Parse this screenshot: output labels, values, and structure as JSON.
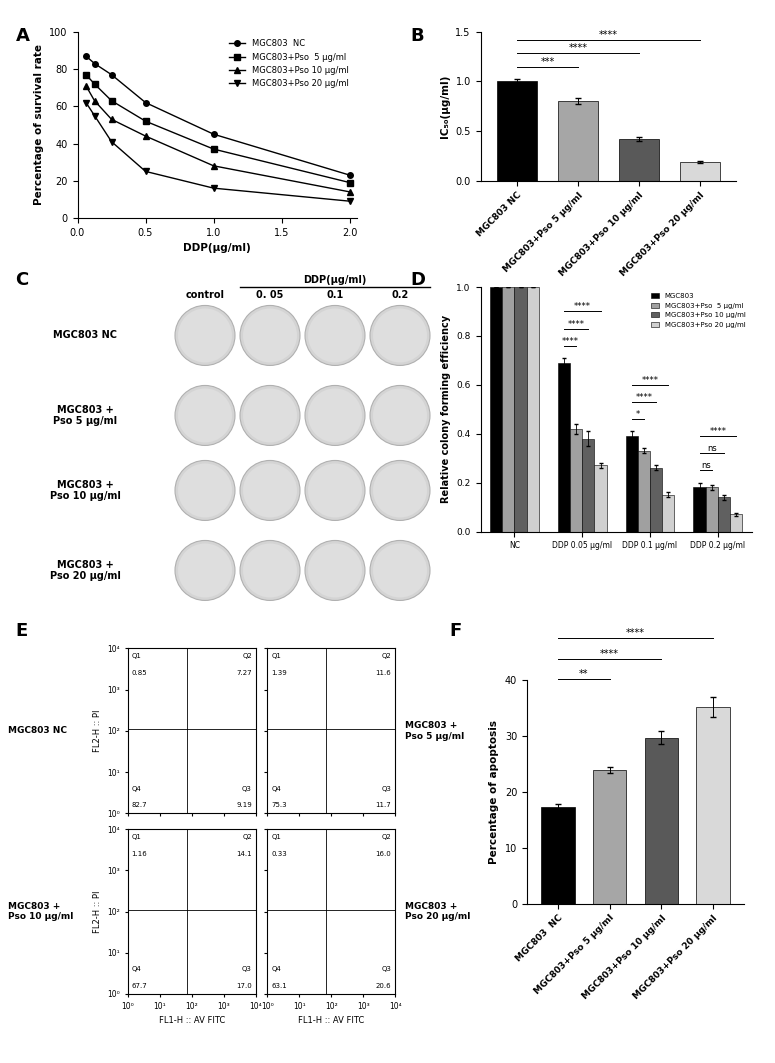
{
  "chart_data": [
    {
      "panel": "A",
      "type": "line",
      "x": [
        0.0625,
        0.125,
        0.25,
        0.5,
        1,
        2
      ],
      "xlabel": "DDP(μg/ml)",
      "ylabel": "Percentage of survival rate",
      "xlim": [
        0,
        2.05
      ],
      "xticks": [
        {
          "value": 0,
          "label": "0.0"
        },
        {
          "value": 0.5,
          "label": "0.5"
        },
        {
          "value": 1,
          "label": "1.0"
        },
        {
          "value": 1.5,
          "label": "1.5"
        },
        {
          "value": 2,
          "label": "2.0"
        }
      ],
      "ylim": [
        0,
        100
      ],
      "yticks": [
        0,
        20,
        40,
        60,
        80,
        100
      ],
      "legend": "upper right",
      "series": [
        {
          "name": "MGC803  NC",
          "color": "#000000",
          "marker": "circle",
          "values": [
            87,
            83,
            77,
            62,
            45,
            23
          ]
        },
        {
          "name": "MGC803+Pso  5 μg/ml",
          "color": "#000000",
          "marker": "square",
          "values": [
            77,
            72,
            63,
            52,
            37,
            19
          ]
        },
        {
          "name": "MGC803+Pso 10 μg/ml",
          "color": "#000000",
          "marker": "triangle_up",
          "values": [
            71,
            63,
            53,
            44,
            28,
            14
          ]
        },
        {
          "name": "MGC803+Pso 20 μg/ml",
          "color": "#000000",
          "marker": "triangle_down",
          "values": [
            62,
            55,
            41,
            25,
            16,
            9
          ]
        }
      ]
    },
    {
      "panel": "B",
      "type": "bar",
      "categories": [
        "MGC803 NC",
        "MGC803+Pso 5 μg/ml",
        "MGC803+Pso 10 μg/ml",
        "MGC803+Pso 20 μg/ml"
      ],
      "values": [
        1.0,
        0.8,
        0.42,
        0.19
      ],
      "errors": [
        0.03,
        0.03,
        0.02,
        0.01
      ],
      "colors": [
        "#000000",
        "#a6a6a6",
        "#595959",
        "#d9d9d9"
      ],
      "ylabel": "IC₅₀(μg/ml)",
      "ylim": [
        0,
        1.5
      ],
      "yticks": [
        {
          "value": 0,
          "label": "0.0"
        },
        {
          "value": 0.5,
          "label": "0.5"
        },
        {
          "value": 1,
          "label": "1.0"
        },
        {
          "value": 1.5,
          "label": "1.5"
        }
      ],
      "significance": [
        {
          "between": [
            "MGC803 NC",
            "MGC803+Pso 5 μg/ml"
          ],
          "label": "***"
        },
        {
          "between": [
            "MGC803 NC",
            "MGC803+Pso 10 μg/ml"
          ],
          "label": "****"
        },
        {
          "between": [
            "MGC803 NC",
            "MGC803+Pso 20 μg/ml"
          ],
          "label": "****"
        }
      ]
    },
    {
      "panel": "C",
      "type": "image_grid",
      "header": "DDP(μg/ml)",
      "columns": [
        "control",
        "0. 05",
        "0.1",
        "0.2"
      ],
      "rows": [
        "MGC803 NC",
        "MGC803 +\nPso 5 μg/ml",
        "MGC803 +\nPso 10 μg/ml",
        "MGC803 +\nPso 20 μg/ml"
      ]
    },
    {
      "panel": "D",
      "type": "bar",
      "categories": [
        "NC",
        "DDP 0.05 μg/ml",
        "DDP 0.1 μg/ml",
        "DDP 0.2 μg/ml"
      ],
      "ylabel": "Relative colony forming efficiency",
      "ylim": [
        0,
        1.0
      ],
      "yticks": [
        {
          "value": 0,
          "label": "0.0"
        },
        {
          "value": 0.2,
          "label": "0.2"
        },
        {
          "value": 0.4,
          "label": "0.4"
        },
        {
          "value": 0.6,
          "label": "0.6"
        },
        {
          "value": 0.8,
          "label": "0.8"
        },
        {
          "value": 1.0,
          "label": "1.0"
        }
      ],
      "legend": "upper right",
      "series": [
        {
          "name": "MGC803",
          "color": "#000000",
          "values": [
            1.0,
            0.69,
            0.39,
            0.18
          ],
          "errors": [
            0,
            0.02,
            0.02,
            0.02
          ]
        },
        {
          "name": "MGC803+Pso  5 μg/ml",
          "color": "#a0a0a0",
          "values": [
            1.0,
            0.42,
            0.33,
            0.18
          ],
          "errors": [
            0,
            0.02,
            0.01,
            0.01
          ]
        },
        {
          "name": "MGC803+Pso 10 μg/ml",
          "color": "#606060",
          "values": [
            1.0,
            0.38,
            0.26,
            0.14
          ],
          "errors": [
            0,
            0.03,
            0.01,
            0.01
          ]
        },
        {
          "name": "MGC803+Pso 20 μg/ml",
          "color": "#d0d0d0",
          "values": [
            1.0,
            0.27,
            0.15,
            0.07
          ],
          "errors": [
            0,
            0.01,
            0.01,
            0.005
          ]
        }
      ],
      "significance": [
        {
          "group": "DDP 0.05 μg/ml",
          "between": [
            "MGC803",
            "MGC803+Pso  5 μg/ml"
          ],
          "label": "****"
        },
        {
          "group": "DDP 0.05 μg/ml",
          "between": [
            "MGC803",
            "MGC803+Pso 10 μg/ml"
          ],
          "label": "****"
        },
        {
          "group": "DDP 0.05 μg/ml",
          "between": [
            "MGC803",
            "MGC803+Pso 20 μg/ml"
          ],
          "label": "****"
        },
        {
          "group": "DDP 0.1 μg/ml",
          "between": [
            "MGC803",
            "MGC803+Pso  5 μg/ml"
          ],
          "label": "*"
        },
        {
          "group": "DDP 0.1 μg/ml",
          "between": [
            "MGC803",
            "MGC803+Pso 10 μg/ml"
          ],
          "label": "****"
        },
        {
          "group": "DDP 0.1 μg/ml",
          "between": [
            "MGC803",
            "MGC803+Pso 20 μg/ml"
          ],
          "label": "****"
        },
        {
          "group": "DDP 0.2 μg/ml",
          "between": [
            "MGC803",
            "MGC803+Pso  5 μg/ml"
          ],
          "label": "ns"
        },
        {
          "group": "DDP 0.2 μg/ml",
          "between": [
            "MGC803",
            "MGC803+Pso 10 μg/ml"
          ],
          "label": "ns"
        },
        {
          "group": "DDP 0.2 μg/ml",
          "between": [
            "MGC803",
            "MGC803+Pso 20 μg/ml"
          ],
          "label": "****"
        }
      ]
    },
    {
      "panel": "E",
      "type": "flow_quadrants",
      "xlabel": "FL1-H :: AV FITC",
      "ylabel": "FL2-H :: PI",
      "log": true,
      "xlim": [
        1,
        10000
      ],
      "ylim": [
        1,
        10000
      ],
      "xticks": [
        {
          "value": 1,
          "label": "10⁰"
        },
        {
          "value": 10,
          "label": "10¹"
        },
        {
          "value": 100,
          "label": "10²"
        },
        {
          "value": 1000,
          "label": "10³"
        },
        {
          "value": 10000,
          "label": "10⁴"
        }
      ],
      "yticks": [
        {
          "value": 1,
          "label": "10⁰"
        },
        {
          "value": 10,
          "label": "10¹"
        },
        {
          "value": 100,
          "label": "10²"
        },
        {
          "value": 1000,
          "label": "10³"
        },
        {
          "value": 10000,
          "label": "10⁴"
        }
      ],
      "gate": [
        70,
        110
      ],
      "plots": [
        {
          "name": "MGC803 NC",
          "tick_labels": "y",
          "quadrants": [
            {
              "name": "Q1",
              "value": 0.85
            },
            {
              "name": "Q2",
              "value": 7.27
            },
            {
              "name": "Q3",
              "value": 9.19
            },
            {
              "name": "Q4",
              "value": 82.7
            }
          ]
        },
        {
          "name": "MGC803 +\nPso 5 μg/ml",
          "tick_labels": false,
          "quadrants": [
            {
              "name": "Q1",
              "value": 1.39
            },
            {
              "name": "Q2",
              "value": 11.6
            },
            {
              "name": "Q3",
              "value": 11.7
            },
            {
              "name": "Q4",
              "value": 75.3
            }
          ]
        },
        {
          "name": "MGC803 +\nPso 10 μg/ml",
          "quadrants": [
            {
              "name": "Q1",
              "value": 1.16
            },
            {
              "name": "Q2",
              "value": 14.1
            },
            {
              "name": "Q3",
              "value": 17.0
            },
            {
              "name": "Q4",
              "value": 67.7
            }
          ]
        },
        {
          "name": "MGC803 +\nPso 20 μg/ml",
          "tick_labels": "x",
          "quadrants": [
            {
              "name": "Q1",
              "value": 0.33
            },
            {
              "name": "Q2",
              "value": 16.0
            },
            {
              "name": "Q3",
              "value": 20.6
            },
            {
              "name": "Q4",
              "value": 63.1
            }
          ]
        }
      ]
    },
    {
      "panel": "F",
      "type": "bar",
      "categories": [
        "MGC803  NC",
        "MGC803+Pso 5 μg/ml",
        "MGC803+Pso 10 μg/ml",
        "MGC803+Pso 20 μg/ml"
      ],
      "values": [
        17.3,
        23.9,
        29.7,
        35.3
      ],
      "errors": [
        0.5,
        0.5,
        1.2,
        1.8
      ],
      "colors": [
        "#000000",
        "#a6a6a6",
        "#595959",
        "#d9d9d9"
      ],
      "ylabel": "Percentage of apoptosis",
      "ylim": [
        0,
        40
      ],
      "yticks": [
        0,
        10,
        20,
        30,
        40
      ],
      "significance": [
        {
          "between": [
            "MGC803  NC",
            "MGC803+Pso 5 μg/ml"
          ],
          "label": "**"
        },
        {
          "between": [
            "MGC803  NC",
            "MGC803+Pso 10 μg/ml"
          ],
          "label": "****"
        },
        {
          "between": [
            "MGC803  NC",
            "MGC803+Pso 20 μg/ml"
          ],
          "label": "****"
        }
      ]
    }
  ]
}
